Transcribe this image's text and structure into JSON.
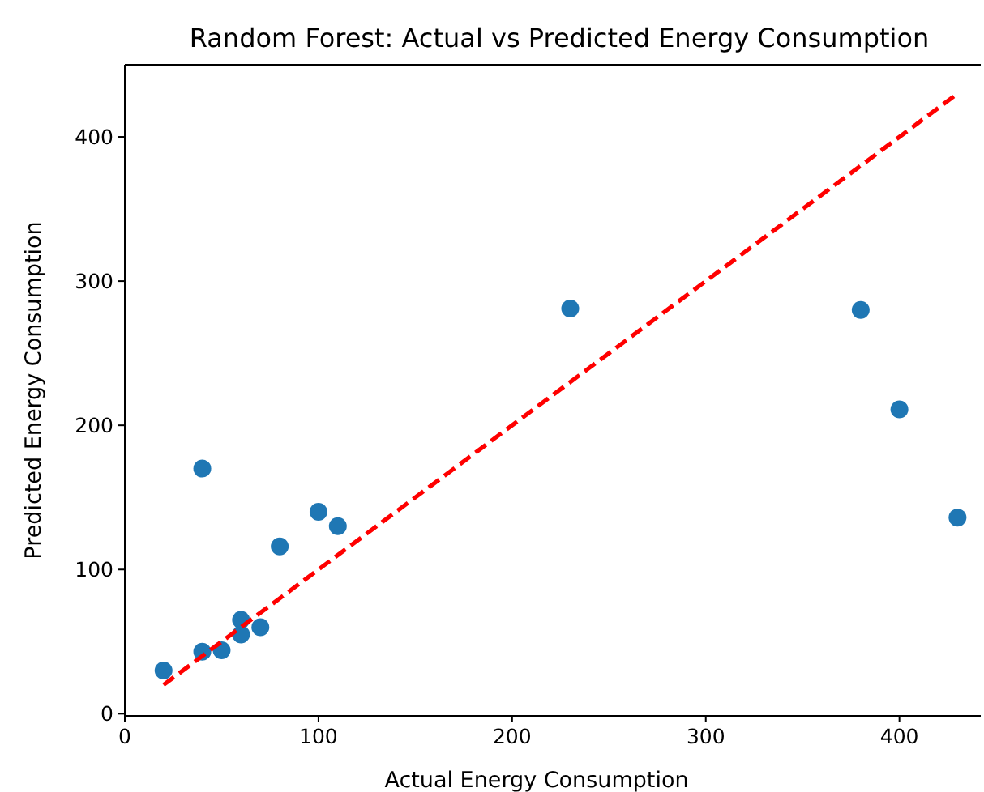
{
  "chart_data": {
    "type": "scatter",
    "title": "Random Forest: Actual vs Predicted Energy Consumption",
    "xlabel": "Actual Energy Consumption",
    "ylabel": "Predicted Energy Consumption",
    "xlim": [
      0,
      442
    ],
    "ylim": [
      -1.5,
      450
    ],
    "xticks": [
      0,
      100,
      200,
      300,
      400
    ],
    "yticks": [
      0,
      100,
      200,
      300,
      400
    ],
    "grid": false,
    "series": [
      {
        "color": "#1f77b4",
        "marker": "circle",
        "x": [
          20,
          40,
          40,
          50,
          60,
          60,
          70,
          80,
          100,
          110,
          230,
          380,
          400,
          430
        ],
        "values": [
          30,
          170,
          43,
          44,
          65,
          55,
          60,
          116,
          140,
          130,
          281,
          280,
          211,
          136
        ]
      },
      {
        "type": "line",
        "color": "#ff0000",
        "line_style": "dashed",
        "marker": "none",
        "x": [
          20,
          430
        ],
        "values": [
          20,
          430
        ]
      }
    ]
  }
}
